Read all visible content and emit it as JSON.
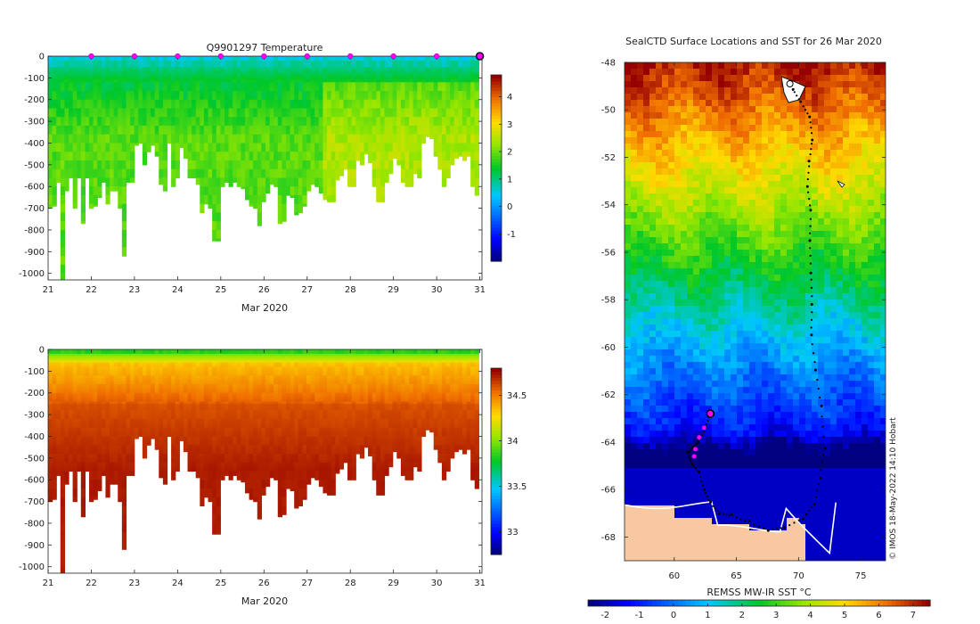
{
  "chart_data": [
    {
      "type": "heatmap",
      "title": "Q9901297  Temperature",
      "xlabel": "Mar 2020",
      "ylabel": "",
      "x_ticks": [
        "21",
        "22",
        "23",
        "24",
        "25",
        "26",
        "27",
        "28",
        "29",
        "30",
        "31"
      ],
      "xlim": [
        21,
        31.05
      ],
      "y_ticks": [
        "0",
        "-100",
        "-200",
        "-300",
        "-400",
        "-500",
        "-600",
        "-700",
        "-800",
        "-900",
        "-1000"
      ],
      "ylim": [
        -1030,
        0
      ],
      "colorbar": {
        "ticks": [
          "-1",
          "0",
          "1",
          "2",
          "3",
          "4"
        ],
        "range": [
          -2,
          4.8
        ]
      },
      "profile_markers_day": [
        22,
        23,
        24,
        25,
        26,
        27,
        28,
        29,
        30
      ],
      "latest_marker_day": 31,
      "variable": "temperature"
    },
    {
      "type": "heatmap",
      "title": "",
      "xlabel": "Mar 2020",
      "ylabel": "",
      "x_ticks": [
        "21",
        "22",
        "23",
        "24",
        "25",
        "26",
        "27",
        "28",
        "29",
        "30",
        "31"
      ],
      "xlim": [
        21,
        31.05
      ],
      "y_ticks": [
        "0",
        "-100",
        "-200",
        "-300",
        "-400",
        "-500",
        "-600",
        "-700",
        "-800",
        "-900",
        "-1000"
      ],
      "ylim": [
        -1030,
        0
      ],
      "colorbar": {
        "ticks": [
          "33",
          "33.5",
          "34",
          "34.5"
        ],
        "range": [
          32.75,
          34.8
        ]
      },
      "variable": "salinity"
    },
    {
      "type": "heatmap",
      "title": "SealCTD Surface Locations and SST for 26 Mar 2020",
      "xlabel": "",
      "ylabel": "",
      "x_ticks": [
        "60",
        "65",
        "70",
        "75"
      ],
      "xlim": [
        56,
        77
      ],
      "y_ticks": [
        "-48",
        "-50",
        "-52",
        "-54",
        "-56",
        "-58",
        "-60",
        "-62",
        "-64",
        "-66",
        "-68"
      ],
      "ylim": [
        -69,
        -48
      ],
      "colorbar": {
        "label": "REMSS MW-IR SST °C",
        "ticks": [
          "-2",
          "-1",
          "0",
          "1",
          "2",
          "3",
          "4",
          "5",
          "6",
          "7"
        ],
        "range": [
          -2.5,
          7.5
        ]
      },
      "credit": "© IMOS 18-May-2022 14:10 Hobart",
      "track": [
        [
          69.5,
          -49.1
        ],
        [
          70.2,
          -49.7
        ],
        [
          70.9,
          -50.3
        ],
        [
          71.1,
          -51.2
        ],
        [
          70.9,
          -52.1
        ],
        [
          70.7,
          -53.2
        ],
        [
          71.0,
          -54.3
        ],
        [
          70.9,
          -55.5
        ],
        [
          71.0,
          -56.8
        ],
        [
          71.1,
          -58.2
        ],
        [
          71.0,
          -59.5
        ],
        [
          71.4,
          -61.0
        ],
        [
          71.8,
          -62.5
        ],
        [
          72.1,
          -64.2
        ],
        [
          71.7,
          -65.5
        ],
        [
          71.3,
          -66.6
        ],
        [
          70.4,
          -67.2
        ],
        [
          68.9,
          -67.6
        ],
        [
          67.6,
          -67.7
        ],
        [
          66.0,
          -67.4
        ],
        [
          64.7,
          -67.1
        ],
        [
          63.7,
          -67.0
        ],
        [
          62.9,
          -66.6
        ],
        [
          62.4,
          -66.0
        ],
        [
          62.0,
          -65.3
        ],
        [
          61.4,
          -64.9
        ],
        [
          61.1,
          -64.5
        ],
        [
          61.5,
          -64.2
        ],
        [
          62.0,
          -64.0
        ],
        [
          62.5,
          -63.4
        ],
        [
          62.9,
          -62.8
        ]
      ],
      "start_marker": [
        69.3,
        -48.9
      ],
      "current_marker": [
        62.9,
        -62.8
      ],
      "recent_positions": [
        [
          62.4,
          -63.4
        ],
        [
          62.0,
          -63.8
        ],
        [
          61.7,
          -64.3
        ],
        [
          61.6,
          -64.6
        ]
      ]
    }
  ]
}
